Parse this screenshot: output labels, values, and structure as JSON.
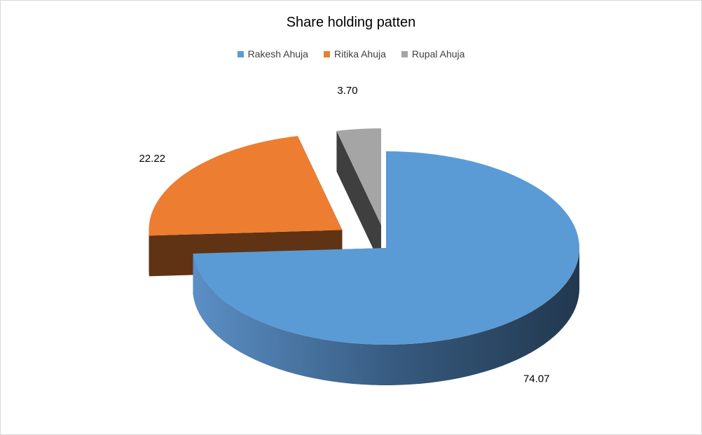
{
  "chart_data": {
    "type": "pie",
    "variant": "3d-exploded",
    "title": "Share holding patten",
    "legend_position": "top",
    "categories": [
      "Rakesh Ahuja",
      "Ritika Ahuja",
      "Rupal Ahuja"
    ],
    "values": [
      74.07,
      22.22,
      3.7
    ],
    "data_labels": [
      "74.07",
      "22.22",
      "3.70"
    ],
    "colors": [
      "#5b9bd5",
      "#ed7d31",
      "#a5a5a5"
    ],
    "side_colors": [
      "#2a4763",
      "#603314",
      "#3f3f3f"
    ]
  }
}
